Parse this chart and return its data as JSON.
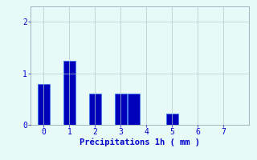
{
  "bar_positions": [
    0,
    1,
    2,
    3,
    3.5,
    5
  ],
  "bar_heights": [
    0.8,
    1.25,
    0.6,
    0.6,
    0.6,
    0.22
  ],
  "bar_color": "#0000bb",
  "bar_edgecolor": "#3377ee",
  "bar_width": 0.45,
  "xlim": [
    -0.5,
    8.0
  ],
  "ylim": [
    0,
    2.3
  ],
  "yticks": [
    0,
    1,
    2
  ],
  "xticks": [
    0,
    1,
    2,
    3,
    4,
    5,
    6,
    7
  ],
  "xlabel": "Précipitations 1h ( mm )",
  "xlabel_color": "#0000cc",
  "xlabel_fontsize": 7.5,
  "tick_color": "#0000cc",
  "tick_fontsize": 7,
  "background_color": "#e8faf8",
  "grid_color": "#b0cccc",
  "spine_color": "#8899aa"
}
